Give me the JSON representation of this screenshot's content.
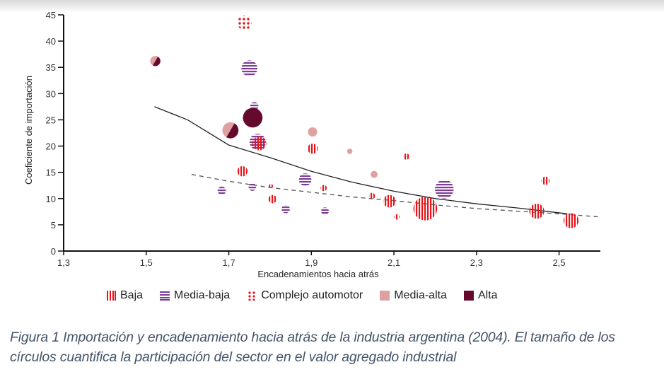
{
  "chart_data": {
    "type": "scatter",
    "subtype": "bubble",
    "xlabel": "Encadenamientos hacia atrás",
    "ylabel": "Coeficiente de importación",
    "xlim": [
      1.3,
      2.6
    ],
    "ylim": [
      0,
      45
    ],
    "xticks": [
      "1,3",
      "1,5",
      "1,7",
      "1,9",
      "2,1",
      "2,3",
      "2,5"
    ],
    "xtick_values": [
      1.3,
      1.5,
      1.7,
      1.9,
      2.1,
      2.3,
      2.5
    ],
    "yticks": [
      "0",
      "5",
      "10",
      "15",
      "20",
      "25",
      "30",
      "35",
      "40",
      "45"
    ],
    "ytick_values": [
      0,
      5,
      10,
      15,
      20,
      25,
      30,
      35,
      40,
      45
    ],
    "grid": false,
    "legend_position": "bottom",
    "categories": [
      {
        "key": "baja",
        "label": "Baja",
        "color": "#e8141c",
        "pattern": "vertical-stripes"
      },
      {
        "key": "media_baja",
        "label": "Media-baja",
        "color": "#7b3b96",
        "pattern": "horizontal-stripes"
      },
      {
        "key": "automotor",
        "label": "Complejo automotor",
        "color": "#e8141c",
        "pattern": "dots"
      },
      {
        "key": "media_alta",
        "label": "Media-alta",
        "color": "#dfa0a0",
        "pattern": "solid"
      },
      {
        "key": "alta",
        "label": "Alta",
        "color": "#650a2c",
        "pattern": "solid"
      }
    ],
    "points": [
      {
        "x": 1.522,
        "y": 36.2,
        "size": 1.0,
        "category": "media_alta+alta"
      },
      {
        "x": 1.738,
        "y": 43.5,
        "size": 2.2,
        "category": "automotor"
      },
      {
        "x": 1.75,
        "y": 34.8,
        "size": 2.8,
        "category": "media_baja"
      },
      {
        "x": 1.762,
        "y": 27.6,
        "size": 0.6,
        "category": "media_baja"
      },
      {
        "x": 1.758,
        "y": 25.4,
        "size": 4.3,
        "category": "alta"
      },
      {
        "x": 1.704,
        "y": 23.0,
        "size": 2.8,
        "category": "media_alta+alta"
      },
      {
        "x": 1.77,
        "y": 20.8,
        "size": 2.9,
        "category": "media_baja"
      },
      {
        "x": 1.774,
        "y": 20.5,
        "size": 2.0,
        "category": "baja"
      },
      {
        "x": 1.733,
        "y": 15.2,
        "size": 1.0,
        "category": "baja"
      },
      {
        "x": 1.683,
        "y": 11.5,
        "size": 0.6,
        "category": "media_baja"
      },
      {
        "x": 1.757,
        "y": 12.2,
        "size": 0.5,
        "category": "media_baja"
      },
      {
        "x": 1.802,
        "y": 12.4,
        "size": 0.1,
        "category": "baja"
      },
      {
        "x": 1.806,
        "y": 9.9,
        "size": 0.6,
        "category": "baja"
      },
      {
        "x": 1.838,
        "y": 8.0,
        "size": 0.6,
        "category": "media_baja"
      },
      {
        "x": 1.885,
        "y": 13.6,
        "size": 1.6,
        "category": "media_baja"
      },
      {
        "x": 1.903,
        "y": 22.7,
        "size": 0.8,
        "category": "media_alta"
      },
      {
        "x": 1.903,
        "y": 19.5,
        "size": 1.0,
        "category": "baja"
      },
      {
        "x": 1.93,
        "y": 12.0,
        "size": 0.3,
        "category": "baja"
      },
      {
        "x": 1.933,
        "y": 7.6,
        "size": 0.5,
        "category": "media_baja"
      },
      {
        "x": 1.993,
        "y": 19.0,
        "size": 0.2,
        "category": "media_alta"
      },
      {
        "x": 2.052,
        "y": 14.6,
        "size": 0.4,
        "category": "media_alta"
      },
      {
        "x": 2.047,
        "y": 10.5,
        "size": 0.3,
        "category": "baja"
      },
      {
        "x": 2.089,
        "y": 9.5,
        "size": 1.6,
        "category": "baja"
      },
      {
        "x": 2.107,
        "y": 6.5,
        "size": 0.2,
        "category": "baja"
      },
      {
        "x": 2.13,
        "y": 18.0,
        "size": 0.3,
        "category": "baja"
      },
      {
        "x": 2.176,
        "y": 8.1,
        "size": 6.5,
        "category": "baja"
      },
      {
        "x": 2.222,
        "y": 11.8,
        "size": 3.9,
        "category": "media_baja"
      },
      {
        "x": 2.446,
        "y": 7.6,
        "size": 2.4,
        "category": "baja"
      },
      {
        "x": 2.467,
        "y": 13.4,
        "size": 0.6,
        "category": "baja"
      },
      {
        "x": 2.529,
        "y": 5.8,
        "size": 2.4,
        "category": "baja"
      }
    ],
    "trendlines": [
      {
        "name": "trend-solid",
        "style": "solid",
        "points": [
          [
            1.52,
            27.5
          ],
          [
            1.6,
            25.0
          ],
          [
            1.7,
            20.2
          ],
          [
            1.8,
            17.8
          ],
          [
            1.9,
            15.2
          ],
          [
            2.0,
            13.1
          ],
          [
            2.1,
            11.4
          ],
          [
            2.2,
            10.0
          ],
          [
            2.3,
            9.0
          ],
          [
            2.4,
            8.2
          ],
          [
            2.52,
            7.1
          ]
        ]
      },
      {
        "name": "trend-dashed",
        "style": "dashed",
        "points": [
          [
            1.61,
            14.6
          ],
          [
            1.7,
            13.3
          ],
          [
            1.8,
            12.1
          ],
          [
            1.9,
            11.2
          ],
          [
            2.0,
            10.3
          ],
          [
            2.1,
            9.6
          ],
          [
            2.2,
            8.8
          ],
          [
            2.3,
            8.1
          ],
          [
            2.4,
            7.6
          ],
          [
            2.5,
            7.1
          ],
          [
            2.6,
            6.5
          ]
        ]
      }
    ]
  },
  "legend": {
    "items": [
      {
        "label": "Baja"
      },
      {
        "label": "Media-baja"
      },
      {
        "label": "Complejo automotor"
      },
      {
        "label": "Media-alta"
      },
      {
        "label": "Alta"
      }
    ]
  },
  "caption": {
    "text": "Figura 1 Importación y encadenamiento hacia atrás de la industria argentina (2004). El tamaño de los círculos cuantifica la participación del sector en el valor agregado industrial"
  }
}
